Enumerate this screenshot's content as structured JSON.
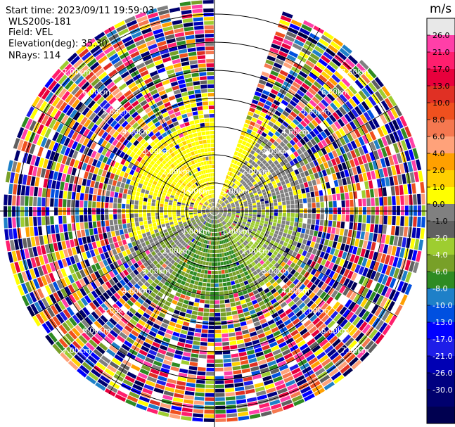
{
  "header": {
    "start_time_label": "Start time: 2023/09/11 19:59:03",
    "instrument": "WLS200s-181",
    "field_label": "Field: VEL",
    "elevation_label": "Elevation(deg): 35.30",
    "nrays_label": "NRays: 114"
  },
  "chart_data": {
    "type": "heatmap",
    "projection": "polar-ppi",
    "field": "VEL",
    "units": "m/s",
    "elevation_deg": 35.3,
    "n_rays": 114,
    "start_time": "2023/09/11 19:59:03",
    "range_ring_labels": [
      "1.00km",
      "2.00km",
      "3.00km",
      "4.00km",
      "5.00km",
      "6.00km",
      "7.00km"
    ],
    "range_rings_km": [
      1,
      2,
      3,
      4,
      5,
      6,
      7
    ],
    "max_range_km": 7.5,
    "missing_sector_deg": [
      0,
      20
    ],
    "colorbar": {
      "unit_label": "m/s",
      "tick_labels": [
        "26.0",
        "21.0",
        "17.0",
        "13.0",
        "10.0",
        "8.0",
        "6.0",
        "4.0",
        "2.0",
        "1.0",
        "0.0",
        "-1.0",
        "-2.0",
        "-4.0",
        "-6.0",
        "-8.0",
        "-10.0",
        "-13.0",
        "-17.0",
        "-21.0",
        "-26.0",
        "-30.0"
      ],
      "colors": [
        "#e8e8e8",
        "#ff3fa8",
        "#ff1e6e",
        "#e8003c",
        "#e03024",
        "#f0501e",
        "#f57850",
        "#ffa27a",
        "#ffa000",
        "#ffd000",
        "#ffff00",
        "#808080",
        "#606060",
        "#9ecd30",
        "#78a028",
        "#2e8b22",
        "#1e80c8",
        "#0050e0",
        "#0000ff",
        "#1e1ee8",
        "#0000b4",
        "#000080",
        "#00006e",
        "#000050"
      ]
    },
    "grid": true,
    "legend_placement": "right"
  }
}
